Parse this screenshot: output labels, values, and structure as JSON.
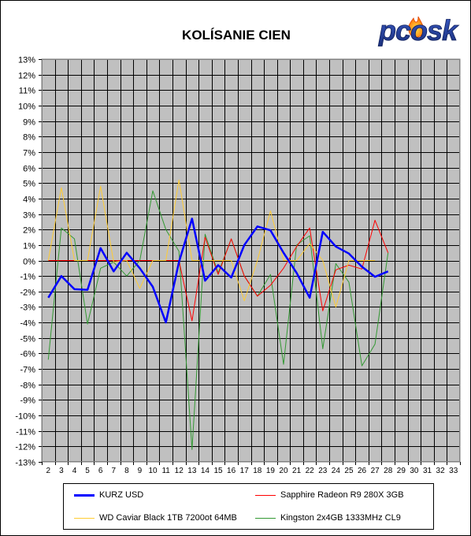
{
  "brand": {
    "logo_text": "pcosk"
  },
  "chart_data": {
    "type": "line",
    "title": "KOLÍSANIE CIEN",
    "xlabel": "",
    "ylabel": "",
    "x": [
      2,
      3,
      4,
      5,
      6,
      7,
      8,
      9,
      10,
      11,
      12,
      13,
      14,
      15,
      16,
      17,
      18,
      19,
      20,
      21,
      22,
      23,
      24,
      25,
      26,
      27,
      28,
      29,
      30,
      31,
      32,
      33
    ],
    "ylim": [
      -13,
      13
    ],
    "y_unit": "%",
    "grid": true,
    "legend_position": "bottom",
    "series": [
      {
        "name": "KURZ USD",
        "color": "#0000ff",
        "width": 2.5,
        "points": [
          [
            2,
            -2.4
          ],
          [
            3,
            -1.0
          ],
          [
            4,
            -1.85
          ],
          [
            5,
            -1.9
          ],
          [
            6,
            0.8
          ],
          [
            7,
            -0.7
          ],
          [
            8,
            0.5
          ],
          [
            9,
            -0.5
          ],
          [
            10,
            -1.7
          ],
          [
            11,
            -4.0
          ],
          [
            12,
            -0.1
          ],
          [
            13,
            2.7
          ],
          [
            14,
            -1.3
          ],
          [
            15,
            -0.3
          ],
          [
            16,
            -1.1
          ],
          [
            17,
            1.0
          ],
          [
            18,
            2.2
          ],
          [
            19,
            1.95
          ],
          [
            20,
            0.5
          ],
          [
            21,
            -0.8
          ],
          [
            22,
            -2.4
          ],
          [
            23,
            1.85
          ],
          [
            24,
            0.9
          ],
          [
            25,
            0.45
          ],
          [
            26,
            -0.4
          ],
          [
            27,
            -1.05
          ],
          [
            28,
            -0.7
          ]
        ]
      },
      {
        "name": "Sapphire Radeon R9 280X 3GB",
        "color": "#ff0000",
        "width": 1,
        "points": [
          [
            2,
            0
          ],
          [
            3,
            0
          ],
          [
            4,
            0
          ],
          [
            5,
            0
          ],
          [
            6,
            0
          ],
          [
            7,
            0
          ],
          [
            8,
            0
          ],
          [
            9,
            0
          ],
          [
            10,
            0
          ],
          [
            11,
            0
          ],
          [
            12,
            0
          ],
          [
            13,
            -3.9
          ],
          [
            14,
            1.5
          ],
          [
            15,
            -0.9
          ],
          [
            16,
            1.4
          ],
          [
            17,
            -1.0
          ],
          [
            18,
            -2.3
          ],
          [
            19,
            -1.6
          ],
          [
            20,
            -0.5
          ],
          [
            21,
            0.9
          ],
          [
            22,
            2.1
          ],
          [
            23,
            -3.25
          ],
          [
            24,
            -0.6
          ],
          [
            25,
            -0.3
          ],
          [
            26,
            -0.55
          ],
          [
            27,
            2.6
          ],
          [
            28,
            0.5
          ]
        ]
      },
      {
        "name": "WD Caviar Black 1TB 7200ot 64MB",
        "color": "#ffcc33",
        "width": 1,
        "points": [
          [
            2,
            0
          ],
          [
            3,
            4.7
          ],
          [
            4,
            0
          ],
          [
            5,
            0
          ],
          [
            6,
            4.8
          ],
          [
            7,
            -0.1
          ],
          [
            8,
            0
          ],
          [
            9,
            -1.8
          ],
          [
            10,
            0
          ],
          [
            11,
            0
          ],
          [
            12,
            5.2
          ],
          [
            13,
            0
          ],
          [
            14,
            0
          ],
          [
            15,
            0
          ],
          [
            16,
            0
          ],
          [
            17,
            -2.6
          ],
          [
            18,
            0
          ],
          [
            19,
            3.2
          ],
          [
            20,
            0
          ],
          [
            21,
            0
          ],
          [
            22,
            1.1
          ],
          [
            23,
            0
          ],
          [
            24,
            -3.0
          ],
          [
            25,
            0
          ],
          [
            26,
            0
          ],
          [
            27,
            0
          ]
        ]
      },
      {
        "name": "Kingston 2x4GB 1333MHz CL9",
        "color": "#339933",
        "width": 1,
        "points": [
          [
            2,
            -6.4
          ],
          [
            3,
            2.1
          ],
          [
            4,
            1.4
          ],
          [
            5,
            -4.1
          ],
          [
            6,
            -0.5
          ],
          [
            7,
            -0.1
          ],
          [
            8,
            -1.0
          ],
          [
            9,
            0
          ],
          [
            10,
            4.5
          ],
          [
            11,
            2.0
          ],
          [
            12,
            0.6
          ],
          [
            13,
            -12.2
          ],
          [
            14,
            1.7
          ],
          [
            15,
            -0.8
          ],
          [
            16,
            1.4
          ],
          [
            17,
            -1.0
          ],
          [
            18,
            -2.3
          ],
          [
            19,
            -0.9
          ],
          [
            20,
            -6.7
          ],
          [
            21,
            1.0
          ],
          [
            22,
            1.6
          ],
          [
            23,
            -5.7
          ],
          [
            24,
            -0.2
          ],
          [
            25,
            -1.4
          ],
          [
            26,
            -6.8
          ],
          [
            27,
            -5.4
          ],
          [
            28,
            0.5
          ]
        ]
      }
    ]
  }
}
